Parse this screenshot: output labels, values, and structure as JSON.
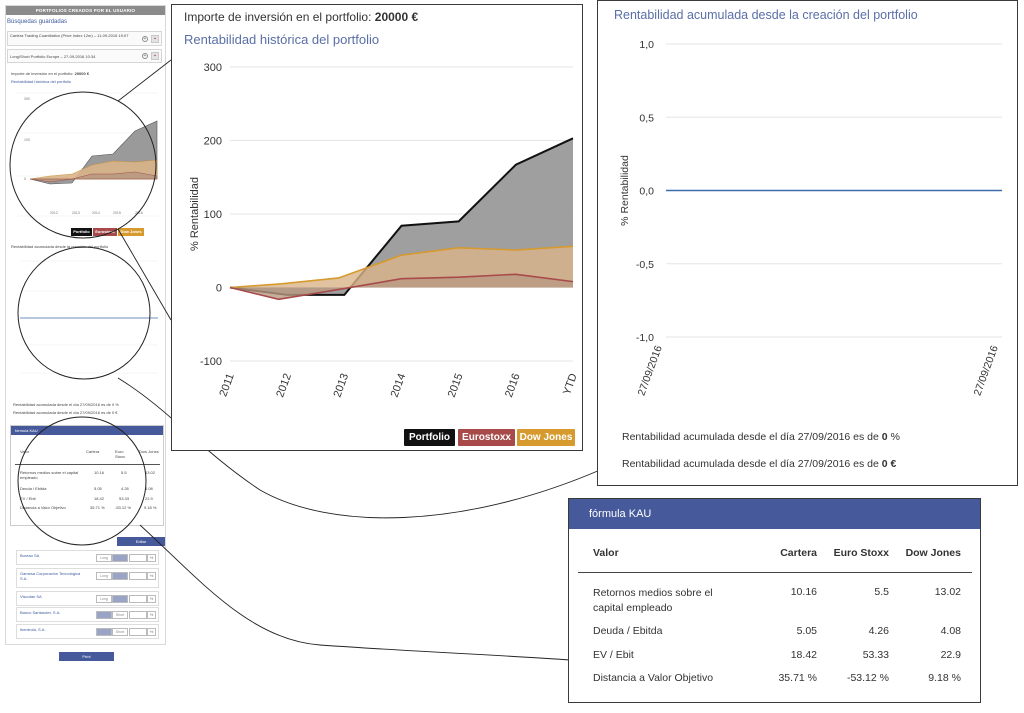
{
  "sidebar": {
    "header": "PORTFOLIOS CREADOS POR EL USUARIO",
    "saved_title": "Búsquedas guardadas",
    "saved_searches": [
      {
        "label": "Cartera Trading Cuantitativo (Price Index 12m) – 11-09-2016 19:07"
      },
      {
        "label": "Long/Short Portfolio Europe – 27-09-2016 10:34"
      }
    ],
    "investment_label": "Importe de inversión en el portfolio:",
    "investment_value": "20000 €",
    "hist_title": "Rentabilidad histórica del portfolio",
    "acum_title": "Rentabilidad acumulada desde la creación del portfolio",
    "acum_line_pct": "Rentabilidad acumulada desde el día 27/09/2016 es de 0 %",
    "acum_line_eur": "Rentabilidad acumulada desde el día 27/09/2016 es de 0 €",
    "edit_label": "Editar",
    "print_label": "Print",
    "companies": [
      {
        "name": "Bureau SA",
        "position": "Long",
        "pct": "%"
      },
      {
        "name": "Gamesa Corporación Tecnológica S.A.",
        "position": "Long",
        "pct": "%"
      },
      {
        "name": "Viscofan SA",
        "position": "Long",
        "pct": "%"
      },
      {
        "name": "Banco Santander, S.A.",
        "position": "Short",
        "pct": "%"
      },
      {
        "name": "Iberdrola, S.A.",
        "position": "Short",
        "pct": "%"
      }
    ]
  },
  "hist": {
    "investment_label": "Importe de inversión en el portfolio:",
    "investment_value": "20000 €",
    "title": "Rentabilidad histórica del portfolio"
  },
  "acum": {
    "title": "Rentabilidad acumulada desde la creación del portfolio",
    "line_pct_prefix": "Rentabilidad acumulada desde el día 27/09/2016 es de",
    "line_pct_value": "0",
    "line_pct_unit": "%",
    "line_eur_prefix": "Rentabilidad acumulada desde el día 27/09/2016 es de",
    "line_eur_value": "0 €"
  },
  "kau": {
    "title": "fórmula KAU",
    "headers": [
      "Valor",
      "Cartera",
      "Euro Stoxx",
      "Dow Jones"
    ],
    "rows": [
      [
        "Retornos medios sobre el capital empleado",
        "10.16",
        "5.5",
        "13.02"
      ],
      [
        "Deuda / Ebitda",
        "5.05",
        "4.26",
        "4.08"
      ],
      [
        "EV / Ebit",
        "18.42",
        "53.33",
        "22.9"
      ],
      [
        "Distancia a Valor Objetivo",
        "35.71 %",
        "-53.12 %",
        "9.18 %"
      ]
    ]
  },
  "chart_data": [
    {
      "type": "area",
      "title": "Rentabilidad histórica del portfolio",
      "xlabel": "",
      "ylabel": "% Rentabilidad",
      "categories": [
        "2011",
        "2012",
        "2013",
        "2014",
        "2015",
        "2016",
        "YTD"
      ],
      "ylim": [
        -100,
        300
      ],
      "yticks": [
        -100,
        0,
        100,
        200,
        300
      ],
      "grid": true,
      "legend_position": "bottom-right",
      "series": [
        {
          "name": "Portfolio",
          "color": "#111111",
          "fill": "#9a9a9a",
          "x": [
            0,
            1,
            2,
            3,
            4,
            5,
            6
          ],
          "values": [
            0,
            -10,
            -10,
            84,
            90,
            167,
            203
          ]
        },
        {
          "name": "Dow Jones",
          "color": "#d69a2e",
          "fill": "#d9b48a",
          "x": [
            0,
            0.9,
            1.9,
            3,
            4,
            5,
            6
          ],
          "values": [
            0,
            5,
            13,
            44,
            54,
            51,
            56
          ]
        },
        {
          "name": "Eurostoxx",
          "color": "#a84a4a",
          "fill": "#b99a82",
          "x": [
            0,
            0.85,
            1.8,
            3,
            4,
            5,
            6
          ],
          "values": [
            0,
            -16,
            -4,
            12,
            14,
            18,
            8
          ]
        }
      ]
    },
    {
      "type": "line",
      "title": "Rentabilidad acumulada desde la creación del portfolio",
      "xlabel": "",
      "ylabel": "% Rentabilidad",
      "categories": [
        "27/09/2016",
        "27/09/2016"
      ],
      "ylim": [
        -1.0,
        1.0
      ],
      "yticks": [
        "1,0",
        "0,5",
        "0,0",
        "-0,5",
        "-1,0"
      ],
      "grid": true,
      "series": [
        {
          "color": "#3d6aa8",
          "values": [
            0,
            0
          ]
        }
      ]
    }
  ],
  "colors": {
    "accent": "#46599a",
    "title_blue": "#5a6fa7",
    "portfolio": "#111111",
    "eurostoxx": "#a84a4a",
    "dowjones": "#d69a2e"
  },
  "icons": {
    "add": "plus-circle-icon",
    "delete": "trash-icon"
  }
}
